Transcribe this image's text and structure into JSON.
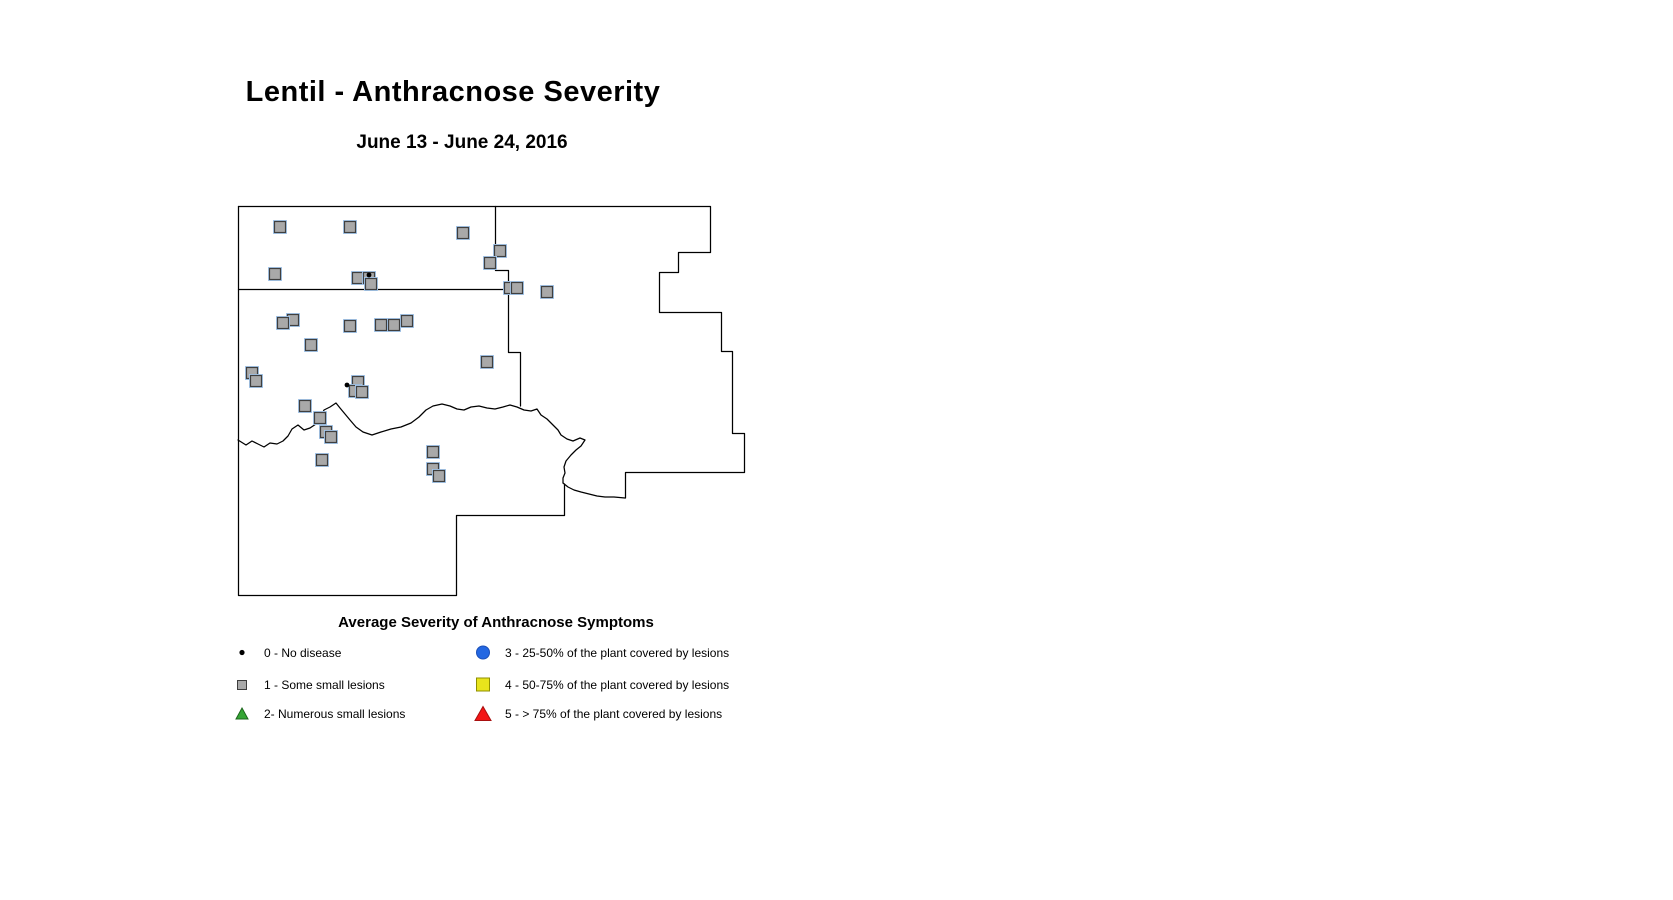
{
  "title": "Lentil - Anthracnose Severity",
  "subtitle": "June 13 - June 24, 2016",
  "legend": {
    "title": "Average Severity of Anthracnose Symptoms",
    "items": [
      {
        "symbol": "black-dot",
        "label": "0 - No disease"
      },
      {
        "symbol": "gray-square",
        "label": "1 - Some small lesions"
      },
      {
        "symbol": "green-triangle",
        "label": "2- Numerous small lesions"
      },
      {
        "symbol": "blue-circle",
        "label": "3 - 25-50% of the plant covered by lesions"
      },
      {
        "symbol": "yellow-square",
        "label": "4 - 50-75% of the plant covered by lesions"
      },
      {
        "symbol": "red-triangle",
        "label": "5 - > 75% of the plant covered by lesions"
      }
    ]
  },
  "colors": {
    "severity_0": "#000000",
    "severity_1": "#a9a9a9",
    "severity_1_border": "#3f3f3f",
    "severity_2": "#35a535",
    "severity_3": "#2367e2",
    "severity_4": "#e8e41c",
    "severity_5": "#f31515",
    "marker_halo": "#a6c8ec",
    "border_line": "#000000"
  },
  "map": {
    "marker_counts": {
      "severity_0": 2,
      "severity_1": 33
    },
    "points": {
      "severity_0_no_disease": [
        [
          369,
          275
        ],
        [
          347,
          385
        ]
      ],
      "severity_1_some_small_lesions": [
        [
          280,
          227
        ],
        [
          350,
          227
        ],
        [
          463,
          233
        ],
        [
          275,
          274
        ],
        [
          358,
          278
        ],
        [
          369,
          278
        ],
        [
          371,
          284
        ],
        [
          500,
          251
        ],
        [
          490,
          263
        ],
        [
          510,
          288
        ],
        [
          517,
          288
        ],
        [
          547,
          292
        ],
        [
          293,
          320
        ],
        [
          283,
          323
        ],
        [
          350,
          326
        ],
        [
          381,
          325
        ],
        [
          394,
          325
        ],
        [
          407,
          321
        ],
        [
          311,
          345
        ],
        [
          252,
          373
        ],
        [
          256,
          381
        ],
        [
          358,
          382
        ],
        [
          355,
          391
        ],
        [
          362,
          392
        ],
        [
          487,
          362
        ],
        [
          305,
          406
        ],
        [
          320,
          418
        ],
        [
          326,
          432
        ],
        [
          331,
          437
        ],
        [
          322,
          460
        ],
        [
          433,
          452
        ],
        [
          433,
          469
        ],
        [
          439,
          476
        ]
      ]
    }
  }
}
